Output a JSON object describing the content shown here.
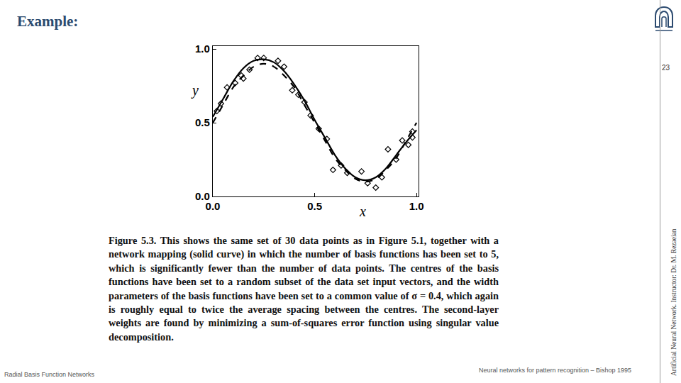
{
  "slide": {
    "title": "Example:",
    "caption": "Figure 5.3. This shows the same set of 30 data points as in Figure 5.1, together with a network mapping (solid curve) in which the number of basis functions has been set to 5, which is significantly fewer than the number of data points. The centres of the basis functions have been set to a random subset of the data set input vectors, and the width parameters of the basis functions have been set to a common value of σ = 0.4, which again is roughly equal to twice the average spacing between the centres. The second-layer weights are found by minimizing a sum-of-squares error function using singular value decomposition.",
    "page_number": "23",
    "side_text": "Artificial Neural Network. Instructor: Dr. M. Rezaeian",
    "footer_left": "Radial Basis Function Networks",
    "footer_right": "Neural networks for pattern recognition – Bishop 1995"
  },
  "chart_data": {
    "type": "scatter",
    "x_label": "x",
    "y_label": "y",
    "xlim": [
      0,
      1.01
    ],
    "ylim": [
      0,
      1.02
    ],
    "xticks": [
      {
        "value": 0,
        "label": "0.0"
      },
      {
        "value": 0.5,
        "label": "0.5"
      },
      {
        "value": 1,
        "label": "1.0"
      }
    ],
    "yticks": [
      {
        "value": 0,
        "label": "0.0"
      },
      {
        "value": 0.5,
        "label": "0.5"
      },
      {
        "value": 1,
        "label": "1.0"
      }
    ],
    "grid": false,
    "series": [
      {
        "type": "scatter",
        "marker": "diamond-open",
        "color": "#000000",
        "x": [
          0.02,
          0.04,
          0.07,
          0.11,
          0.14,
          0.15,
          0.18,
          0.22,
          0.25,
          0.32,
          0.35,
          0.39,
          0.42,
          0.45,
          0.48,
          0.52,
          0.56,
          0.59,
          0.63,
          0.66,
          0.73,
          0.76,
          0.8,
          0.83,
          0.86,
          0.9,
          0.93,
          0.96,
          0.98,
          0.98
        ],
        "values": [
          0.58,
          0.63,
          0.74,
          0.77,
          0.82,
          0.8,
          0.86,
          0.94,
          0.94,
          0.92,
          0.88,
          0.72,
          0.69,
          0.64,
          0.55,
          0.46,
          0.39,
          0.18,
          0.21,
          0.16,
          0.17,
          0.09,
          0.06,
          0.13,
          0.32,
          0.25,
          0.38,
          0.35,
          0.44,
          0.4
        ]
      },
      {
        "type": "line",
        "line_style": "dashed",
        "color": "#000000",
        "x": [
          0,
          0.05,
          0.1,
          0.15,
          0.2,
          0.25,
          0.3,
          0.35,
          0.4,
          0.45,
          0.5,
          0.55,
          0.6,
          0.65,
          0.7,
          0.75,
          0.8,
          0.85,
          0.9,
          0.95,
          1
        ],
        "values": [
          0.5,
          0.62,
          0.74,
          0.82,
          0.88,
          0.9,
          0.88,
          0.82,
          0.74,
          0.62,
          0.5,
          0.38,
          0.26,
          0.18,
          0.12,
          0.1,
          0.12,
          0.18,
          0.26,
          0.38,
          0.5
        ]
      },
      {
        "type": "line",
        "line_style": "solid",
        "color": "#000000",
        "x": [
          0,
          0.05,
          0.1,
          0.15,
          0.2,
          0.25,
          0.3,
          0.35,
          0.4,
          0.45,
          0.5,
          0.55,
          0.6,
          0.65,
          0.7,
          0.75,
          0.8,
          0.85,
          0.9,
          0.95,
          1
        ],
        "values": [
          0.54,
          0.66,
          0.78,
          0.87,
          0.92,
          0.93,
          0.91,
          0.85,
          0.76,
          0.65,
          0.52,
          0.4,
          0.28,
          0.19,
          0.13,
          0.11,
          0.13,
          0.19,
          0.28,
          0.37,
          0.45
        ]
      }
    ]
  }
}
